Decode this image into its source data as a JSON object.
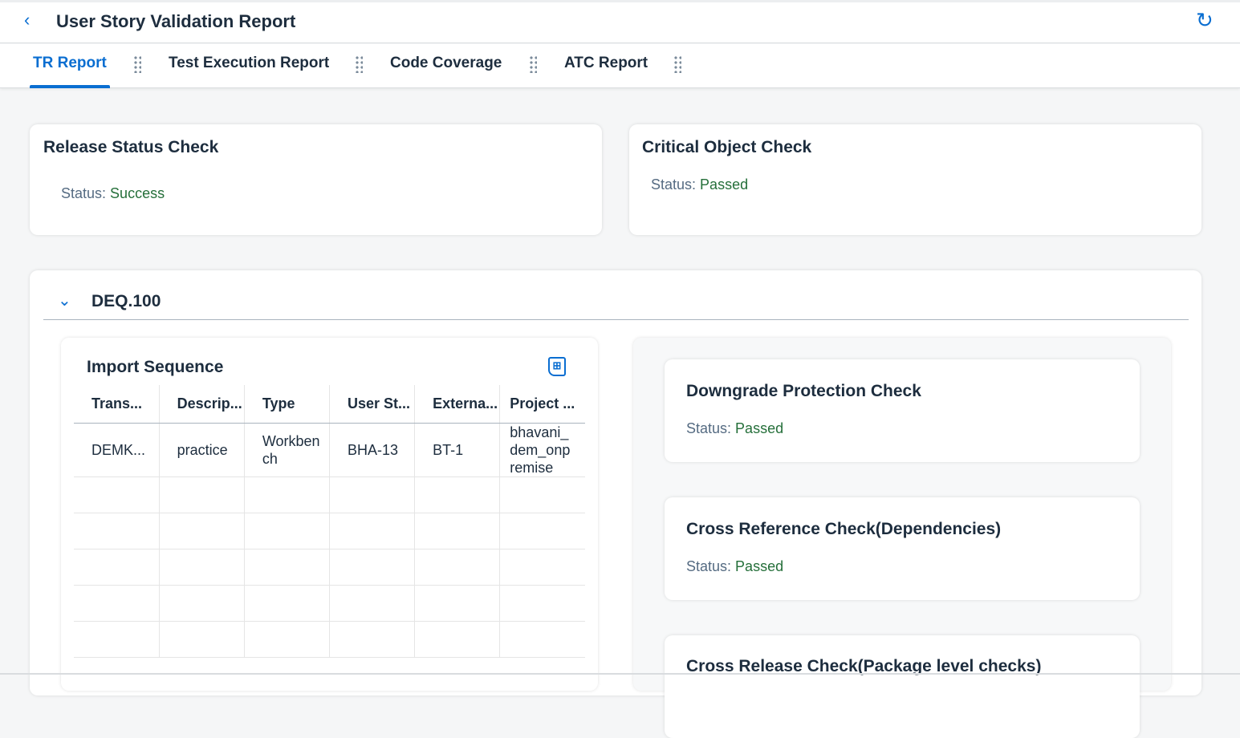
{
  "header": {
    "title": "User Story Validation Report",
    "back_icon": "chevron-left-icon",
    "refresh_icon": "refresh-icon"
  },
  "tabs": [
    {
      "label": "TR Report",
      "active": true
    },
    {
      "label": "Test Execution Report"
    },
    {
      "label": "Code Coverage"
    },
    {
      "label": "ATC Report"
    }
  ],
  "cards": {
    "release": {
      "title": "Release Status Check",
      "label": "Status:",
      "value": "Success"
    },
    "critical": {
      "title": "Critical Object Check",
      "label": "Status:",
      "value": "Passed"
    }
  },
  "section": {
    "title": "DEQ.100",
    "import": {
      "title": "Import Sequence",
      "columns": [
        "Trans...",
        "Descrip...",
        "Type",
        "User St...",
        "Externa...",
        "Project ..."
      ],
      "rows": [
        [
          "DEMK...",
          "practice",
          "Workben ch",
          "BHA-13",
          "BT-1",
          "bhavani_ dem_onp remise"
        ]
      ]
    },
    "checks": [
      {
        "title": "Downgrade Protection Check",
        "label": "Status:",
        "value": "Passed"
      },
      {
        "title": "Cross Reference Check(Dependencies)",
        "label": "Status:",
        "value": "Passed"
      },
      {
        "title": "Cross Release Check(Package level checks)"
      }
    ]
  },
  "colors": {
    "accent": "#0a6ed1",
    "success": "#256f3a"
  }
}
